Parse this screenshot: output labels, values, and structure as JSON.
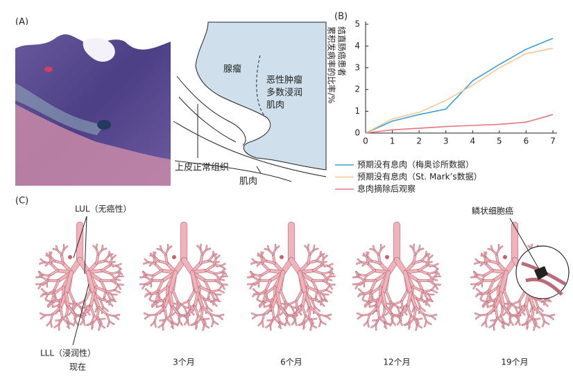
{
  "panel_labels": [
    "(A)",
    "(B)",
    "(C)"
  ],
  "panel_a": {
    "adenoma": "腺瘤",
    "carcinoma_lines": [
      "恶性肿瘤",
      "多数浸润",
      "肌肉"
    ],
    "normal_epithelium": "上皮正常组织",
    "muscle": "肌肉"
  },
  "chart_data": {
    "type": "line",
    "ylabel_lines": [
      "结直肠癌患者",
      "累积发病率的比率/%"
    ],
    "x": [
      0,
      1,
      2,
      3,
      4,
      5,
      6,
      7
    ],
    "xlim": [
      0,
      7
    ],
    "xticks": [
      0,
      1,
      2,
      3,
      4,
      5,
      6,
      7
    ],
    "ylim": [
      0,
      5
    ],
    "yticks": [
      0,
      1,
      2,
      3,
      4,
      5
    ],
    "series": [
      {
        "name": "预期没有息肉（梅奥诊所数据）",
        "color": "#3a9fd8",
        "values": [
          0,
          0.55,
          0.85,
          1.1,
          2.4,
          3.15,
          3.85,
          4.35
        ]
      },
      {
        "name": "预期没有息肉（St. Mark’s数据）",
        "color": "#f5c78e",
        "values": [
          0,
          0.65,
          0.95,
          1.5,
          2.2,
          3.0,
          3.65,
          3.9
        ]
      },
      {
        "name": "息肉摘除后观察",
        "color": "#e8757d",
        "values": [
          0,
          0.15,
          0.22,
          0.3,
          0.35,
          0.4,
          0.5,
          0.85
        ]
      }
    ]
  },
  "panel_c": {
    "lul_label": "LUL（无癌性）",
    "lll_label": "LLL（浸润性）",
    "now": "现在",
    "times": [
      "3个月",
      "6个月",
      "12个月",
      "19个月"
    ],
    "tumor_label": "鳞状细胞癌"
  }
}
